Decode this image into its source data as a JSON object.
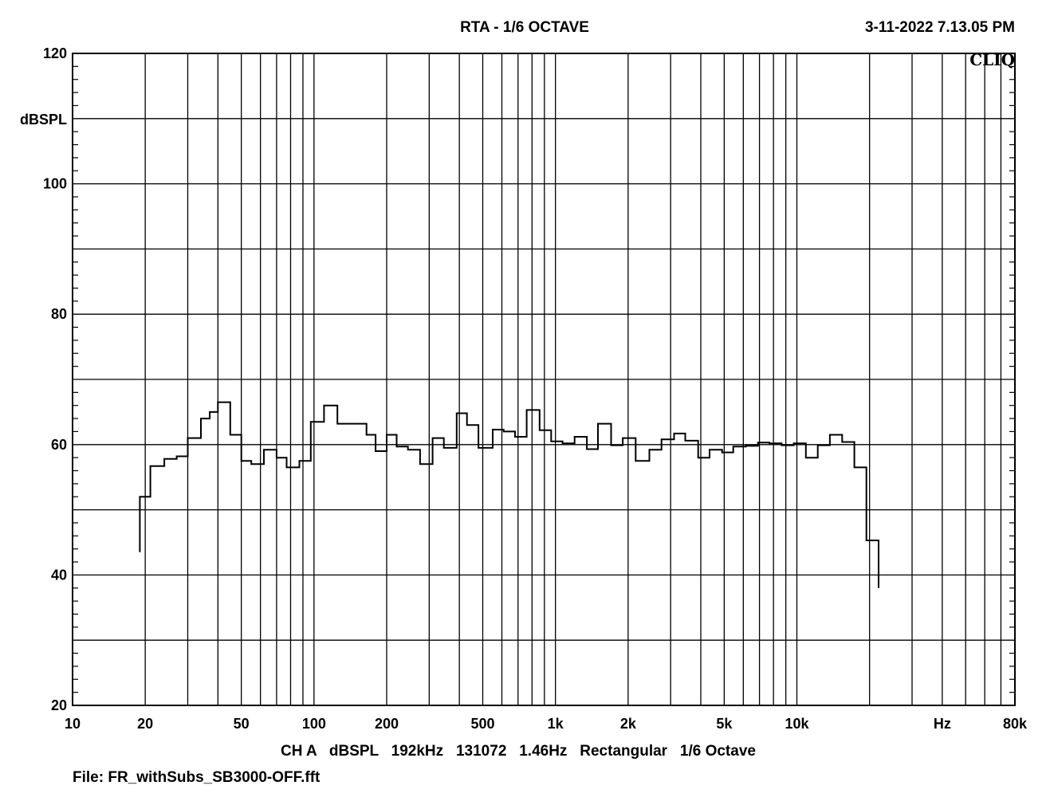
{
  "header": {
    "title": "RTA - 1/6 OCTAVE",
    "timestamp": "3-11-2022 7.13.05 PM",
    "logo": "CLIQ"
  },
  "footer": {
    "settings": "CH A   dBSPL   192kHz   131072   1.46Hz   Rectangular   1/6 Octave",
    "file": "File: FR_withSubs_SB3000-OFF.fft"
  },
  "chart_data": {
    "type": "line",
    "title": "RTA - 1/6 OCTAVE",
    "ylabel": "dBSPL",
    "xlabel": "Hz",
    "x_scale": "log",
    "xlim": [
      10,
      80000
    ],
    "ylim": [
      20,
      120
    ],
    "grid": true,
    "y_ticks": [
      {
        "value": 120,
        "label": "120"
      },
      {
        "value": 100,
        "label": "100"
      },
      {
        "value": 80,
        "label": "80"
      },
      {
        "value": 60,
        "label": "60"
      },
      {
        "value": 40,
        "label": "40"
      },
      {
        "value": 20,
        "label": "20"
      }
    ],
    "x_ticks": [
      {
        "value": 10,
        "label": "10"
      },
      {
        "value": 20,
        "label": "20"
      },
      {
        "value": 50,
        "label": "50"
      },
      {
        "value": 100,
        "label": "100"
      },
      {
        "value": 200,
        "label": "200"
      },
      {
        "value": 500,
        "label": "500"
      },
      {
        "value": 1000,
        "label": "1k"
      },
      {
        "value": 2000,
        "label": "2k"
      },
      {
        "value": 5000,
        "label": "5k"
      },
      {
        "value": 10000,
        "label": "10k"
      },
      {
        "value": 40000,
        "label": "Hz"
      },
      {
        "value": 80000,
        "label": "80k"
      }
    ],
    "series": [
      {
        "values": [
          [
            19,
            43.5
          ],
          [
            19,
            52
          ],
          [
            21,
            52
          ],
          [
            21,
            56.7
          ],
          [
            24,
            56.7
          ],
          [
            24,
            57.8
          ],
          [
            27,
            57.8
          ],
          [
            27,
            58.2
          ],
          [
            30,
            58.2
          ],
          [
            30,
            61
          ],
          [
            34,
            61
          ],
          [
            34,
            64
          ],
          [
            37,
            64
          ],
          [
            37,
            65
          ],
          [
            40,
            65
          ],
          [
            40,
            66.5
          ],
          [
            45,
            66.5
          ],
          [
            45,
            61.5
          ],
          [
            50,
            61.5
          ],
          [
            50,
            57.5
          ],
          [
            55,
            57.5
          ],
          [
            55,
            57
          ],
          [
            62,
            57
          ],
          [
            62,
            59.2
          ],
          [
            70,
            59.2
          ],
          [
            70,
            58
          ],
          [
            77,
            58
          ],
          [
            77,
            56.5
          ],
          [
            87,
            56.5
          ],
          [
            87,
            57.5
          ],
          [
            97,
            57.5
          ],
          [
            97,
            63.5
          ],
          [
            110,
            63.5
          ],
          [
            110,
            66
          ],
          [
            125,
            66
          ],
          [
            125,
            63.2
          ],
          [
            165,
            63.2
          ],
          [
            165,
            61.5
          ],
          [
            180,
            61.5
          ],
          [
            180,
            59
          ],
          [
            200,
            59
          ],
          [
            200,
            61.5
          ],
          [
            220,
            61.5
          ],
          [
            220,
            59.7
          ],
          [
            245,
            59.7
          ],
          [
            245,
            59.2
          ],
          [
            275,
            59.2
          ],
          [
            275,
            57
          ],
          [
            310,
            57
          ],
          [
            310,
            61
          ],
          [
            345,
            61
          ],
          [
            345,
            59.5
          ],
          [
            390,
            59.5
          ],
          [
            390,
            64.8
          ],
          [
            430,
            64.8
          ],
          [
            430,
            63
          ],
          [
            480,
            63
          ],
          [
            480,
            59.5
          ],
          [
            550,
            59.5
          ],
          [
            550,
            62.3
          ],
          [
            610,
            62.3
          ],
          [
            610,
            62
          ],
          [
            680,
            62
          ],
          [
            680,
            61.2
          ],
          [
            760,
            61.2
          ],
          [
            760,
            65.3
          ],
          [
            860,
            65.3
          ],
          [
            860,
            62.2
          ],
          [
            960,
            62.2
          ],
          [
            960,
            60.5
          ],
          [
            1070,
            60.5
          ],
          [
            1070,
            60.2
          ],
          [
            1200,
            60.2
          ],
          [
            1200,
            61.2
          ],
          [
            1350,
            61.2
          ],
          [
            1350,
            59.3
          ],
          [
            1500,
            59.3
          ],
          [
            1500,
            63.2
          ],
          [
            1700,
            63.2
          ],
          [
            1700,
            59.9
          ],
          [
            1900,
            59.9
          ],
          [
            1900,
            61
          ],
          [
            2150,
            61
          ],
          [
            2150,
            57.5
          ],
          [
            2450,
            57.5
          ],
          [
            2450,
            59.2
          ],
          [
            2750,
            59.2
          ],
          [
            2750,
            60.8
          ],
          [
            3100,
            60.8
          ],
          [
            3100,
            61.7
          ],
          [
            3450,
            61.7
          ],
          [
            3450,
            60.6
          ],
          [
            3900,
            60.6
          ],
          [
            3900,
            58
          ],
          [
            4350,
            58
          ],
          [
            4350,
            59.2
          ],
          [
            4900,
            59.2
          ],
          [
            4900,
            58.8
          ],
          [
            5450,
            58.8
          ],
          [
            5450,
            59.7
          ],
          [
            6150,
            59.7
          ],
          [
            6150,
            59.8
          ],
          [
            6900,
            59.8
          ],
          [
            6900,
            60.3
          ],
          [
            7700,
            60.3
          ],
          [
            7700,
            60.2
          ],
          [
            8650,
            60.2
          ],
          [
            8650,
            59.9
          ],
          [
            9700,
            59.9
          ],
          [
            9700,
            60.2
          ],
          [
            10900,
            60.2
          ],
          [
            10900,
            58
          ],
          [
            12200,
            58
          ],
          [
            12200,
            59.9
          ],
          [
            13700,
            59.9
          ],
          [
            13700,
            61.5
          ],
          [
            15400,
            61.5
          ],
          [
            15400,
            60.4
          ],
          [
            17300,
            60.4
          ],
          [
            17300,
            56.5
          ],
          [
            19400,
            56.5
          ],
          [
            19400,
            45.3
          ],
          [
            21800,
            45.3
          ],
          [
            21800,
            38
          ]
        ]
      }
    ]
  }
}
